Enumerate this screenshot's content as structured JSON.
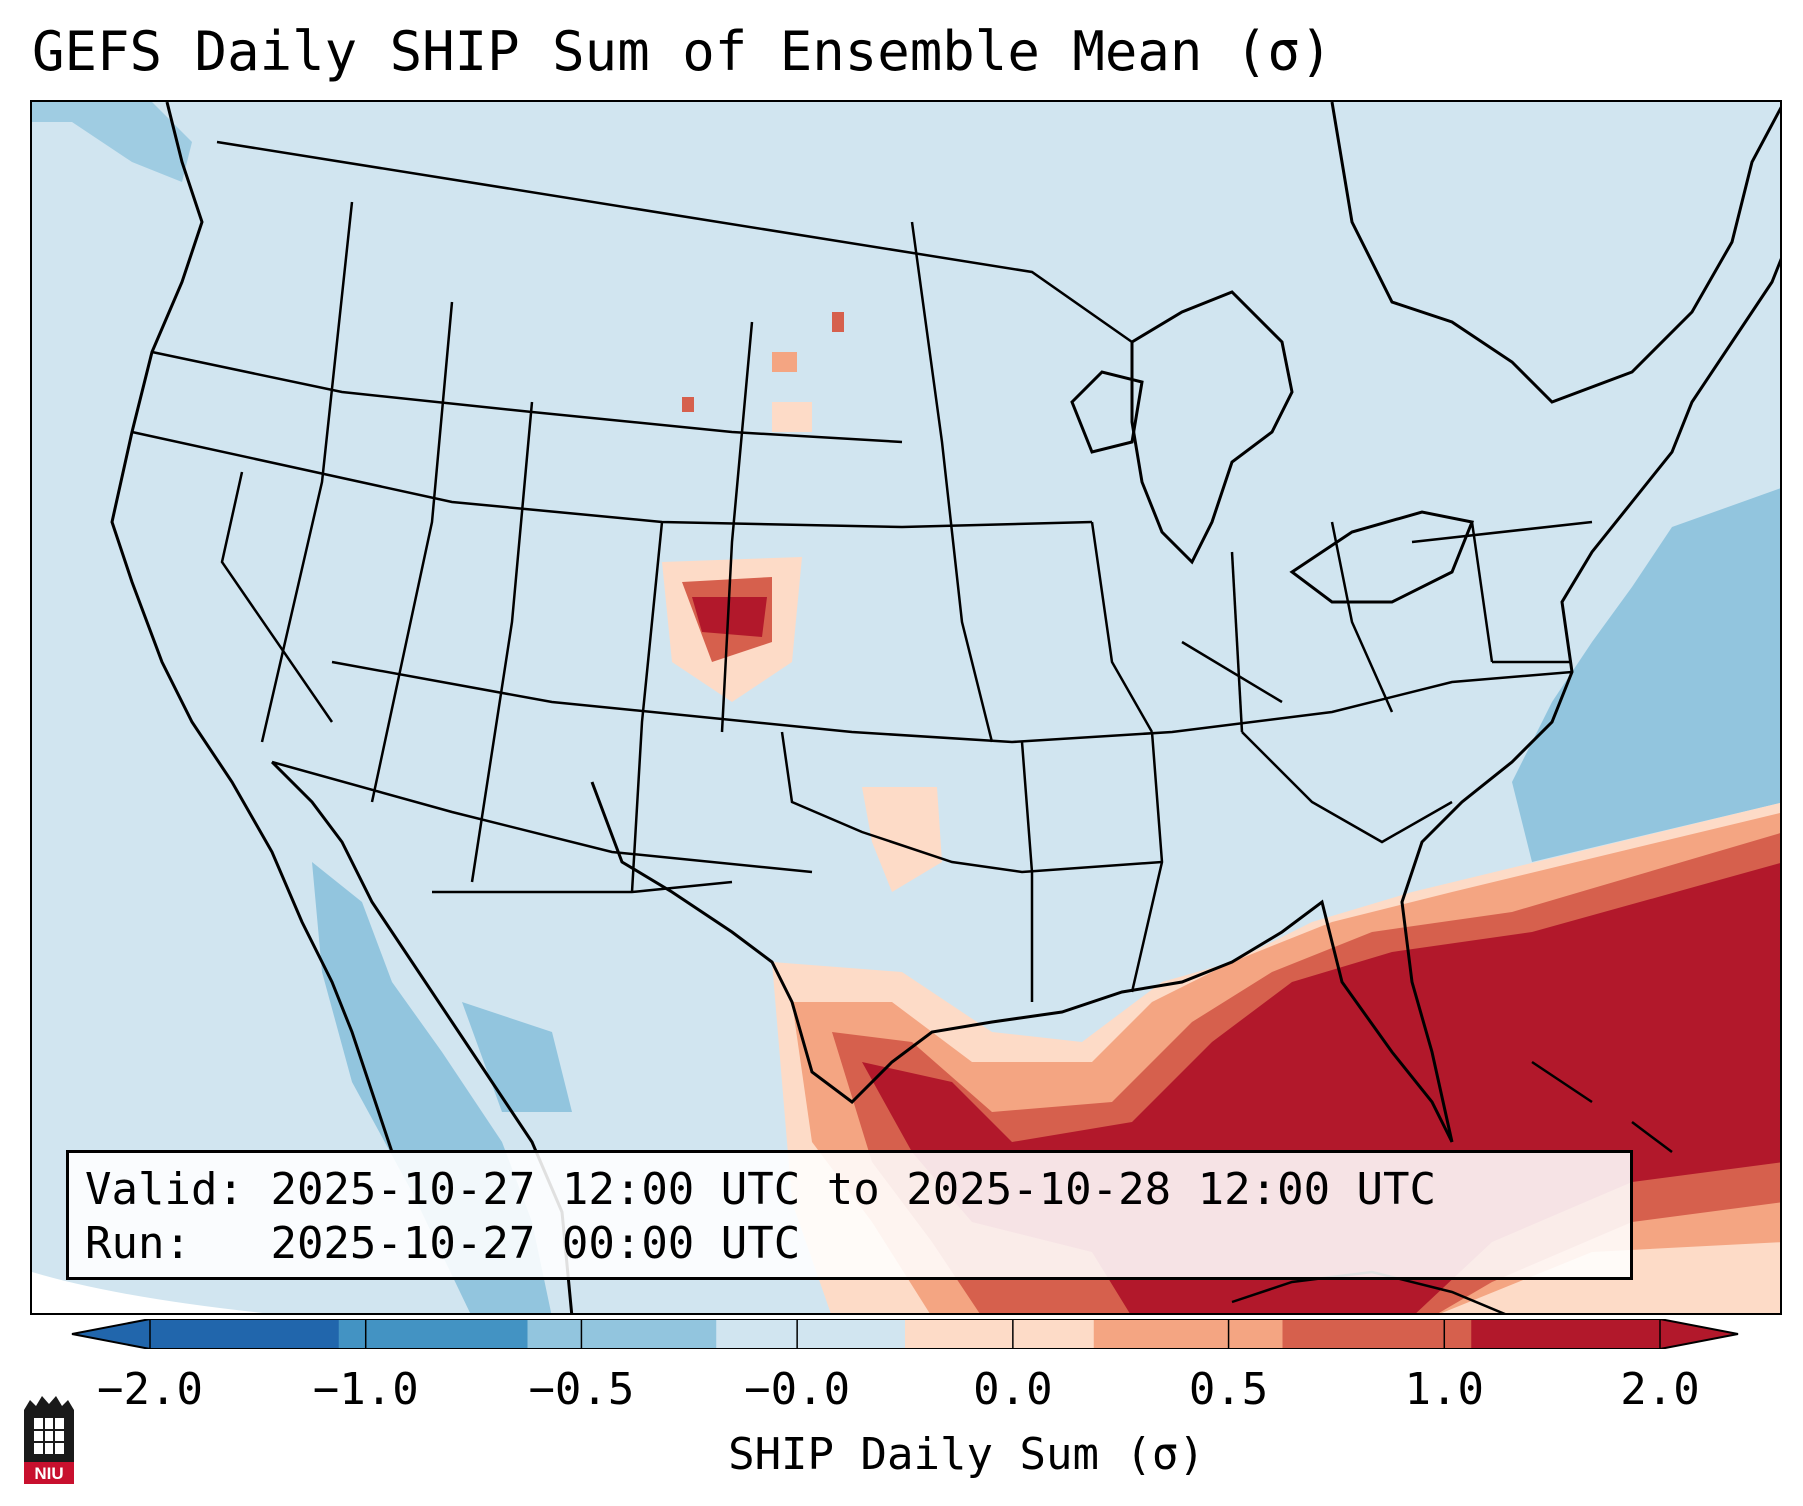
{
  "title": "GEFS Daily SHIP Sum of Ensemble Mean (σ)",
  "valid_label": "Valid:",
  "valid_value": "2025-10-27 12:00 UTC to 2025-10-28 12:00 UTC",
  "run_label": "Run:",
  "run_value": "2025-10-27 00:00 UTC",
  "colorbar": {
    "label": "SHIP Daily Sum (σ)",
    "ticks": [
      "−2.0",
      "−1.0",
      "−0.5",
      "−0.0",
      "0.0",
      "0.5",
      "1.0",
      "2.0"
    ],
    "colors": [
      "#2166ac",
      "#4393c3",
      "#92c5de",
      "#d1e5f0",
      "#fddbc7",
      "#f4a582",
      "#d6604d",
      "#b2182b"
    ],
    "extend": "both"
  },
  "logo": {
    "text": "NIU",
    "icon": "niu-logo-icon"
  }
}
